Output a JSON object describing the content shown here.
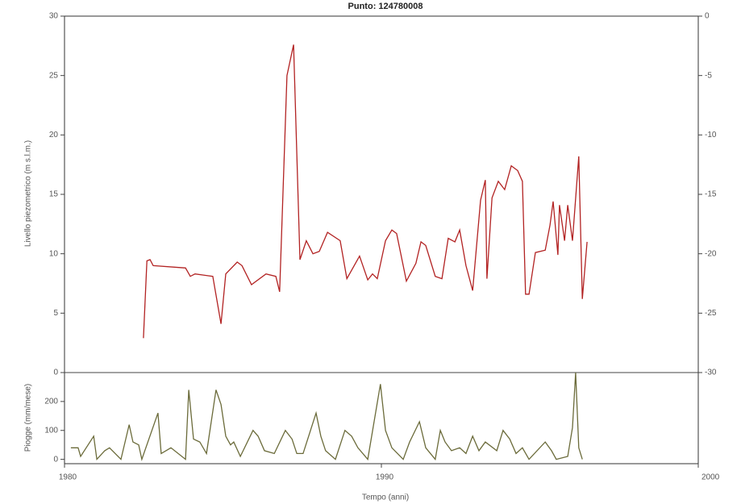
{
  "chart_data": [
    {
      "type": "line",
      "title": "Punto: 124780008",
      "y_label": "Livello piezometrico (m s.l.m.)",
      "x": [
        1982.49,
        1982.6,
        1982.7,
        1982.8,
        1983.82,
        1983.97,
        1984.12,
        1984.68,
        1984.94,
        1985.09,
        1985.45,
        1985.6,
        1985.9,
        1986.36,
        1986.67,
        1986.79,
        1987.02,
        1987.23,
        1987.43,
        1987.63,
        1987.84,
        1988.04,
        1988.3,
        1988.7,
        1988.91,
        1989.31,
        1989.57,
        1989.72,
        1989.87,
        1990.13,
        1990.33,
        1990.48,
        1990.79,
        1991.09,
        1991.25,
        1991.4,
        1991.7,
        1991.91,
        1992.11,
        1992.32,
        1992.47,
        1992.67,
        1992.88,
        1993.13,
        1993.28,
        1993.33,
        1993.49,
        1993.69,
        1993.89,
        1994.1,
        1994.3,
        1994.45,
        1994.55,
        1994.66,
        1994.86,
        1995.17,
        1995.32,
        1995.42,
        1995.57,
        1995.62,
        1995.78,
        1995.88,
        1996.03,
        1996.23,
        1996.34,
        1996.49
      ],
      "series": [
        {
          "color": "#b22222",
          "values": [
            2.9,
            9.4,
            9.5,
            9.0,
            8.8,
            8.1,
            8.3,
            8.1,
            4.1,
            8.3,
            9.3,
            9.0,
            7.4,
            8.3,
            8.1,
            6.8,
            25,
            27.6,
            9.5,
            11.1,
            10,
            10.2,
            11.8,
            11.1,
            7.9,
            9.8,
            7.8,
            8.3,
            7.9,
            11.1,
            12,
            11.7,
            7.7,
            9.2,
            11,
            10.7,
            8.1,
            7.9,
            11.3,
            11,
            12,
            9,
            6.9,
            14.5,
            16.2,
            7.9,
            14.7,
            16.1,
            15.4,
            17.4,
            17,
            16.1,
            6.6,
            6.6,
            10.1,
            10.3,
            12.4,
            14.4,
            9.9,
            14.1,
            11.1,
            14.1,
            11.1,
            18.2,
            6.2,
            11
          ]
        }
      ],
      "xlim": [
        1980,
        2000
      ],
      "ylim": [
        0,
        30
      ],
      "yticks": [
        0,
        5,
        10,
        15,
        20,
        25,
        30
      ],
      "y2lim": [
        -30,
        0
      ],
      "y2ticks": [
        -30,
        -25,
        -20,
        -15,
        -10,
        -5,
        0
      ]
    },
    {
      "type": "line",
      "y_label": "Piogge (mm/mese)",
      "x_label": "Tempo (anni)",
      "x": [
        1980.2,
        1980.43,
        1980.51,
        1980.92,
        1981.02,
        1981.27,
        1981.42,
        1981.78,
        1982.04,
        1982.16,
        1982.34,
        1982.44,
        1982.95,
        1983.05,
        1983.36,
        1983.82,
        1983.92,
        1984.07,
        1984.27,
        1984.48,
        1984.78,
        1984.94,
        1985.09,
        1985.24,
        1985.34,
        1985.55,
        1985.95,
        1986.11,
        1986.31,
        1986.62,
        1986.97,
        1987.18,
        1987.33,
        1987.53,
        1987.94,
        1988.09,
        1988.24,
        1988.55,
        1988.85,
        1989.06,
        1989.26,
        1989.57,
        1989.97,
        1990.13,
        1990.33,
        1990.69,
        1990.89,
        1991.2,
        1991.4,
        1991.7,
        1991.86,
        1992.01,
        1992.21,
        1992.47,
        1992.67,
        1992.88,
        1993.08,
        1993.28,
        1993.64,
        1993.84,
        1994.05,
        1994.25,
        1994.45,
        1994.66,
        1995.17,
        1995.37,
        1995.52,
        1995.88,
        1996.03,
        1996.13,
        1996.23,
        1996.34
      ],
      "series": [
        {
          "color": "#6b6b3a",
          "values": [
            40,
            40,
            10,
            80,
            0,
            30,
            40,
            0,
            120,
            60,
            50,
            0,
            160,
            20,
            40,
            0,
            240,
            70,
            60,
            20,
            240,
            190,
            80,
            50,
            60,
            10,
            100,
            80,
            30,
            20,
            100,
            70,
            20,
            20,
            160,
            80,
            30,
            0,
            100,
            80,
            40,
            0,
            260,
            100,
            40,
            0,
            60,
            130,
            40,
            0,
            100,
            60,
            30,
            40,
            20,
            80,
            30,
            60,
            30,
            100,
            70,
            20,
            40,
            0,
            60,
            30,
            0,
            10,
            110,
            300,
            40,
            0
          ]
        }
      ],
      "xlim": [
        1980,
        2000
      ],
      "ylim": [
        -15,
        300
      ],
      "yticks": [
        0,
        100,
        200
      ],
      "xticks": [
        1980,
        1990,
        2000
      ]
    }
  ]
}
